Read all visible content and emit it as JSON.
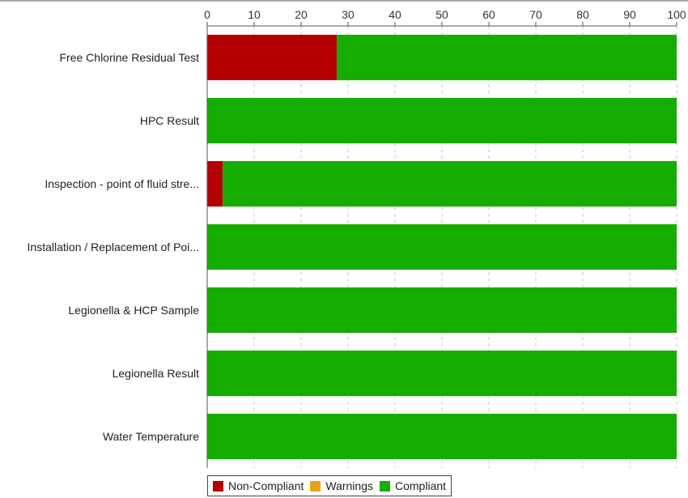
{
  "chart_data": {
    "type": "bar",
    "orientation": "horizontal",
    "stacked": true,
    "categories": [
      "Free Chlorine Residual Test",
      "HPC Result",
      "Inspection - point of fluid stre...",
      "Installation / Replacement of Poi...",
      "Legionella & HCP Sample",
      "Legionella Result",
      "Water Temperature"
    ],
    "series": [
      {
        "name": "Non-Compliant",
        "color": "#b30000",
        "values": [
          27.6,
          0,
          3.3,
          0,
          0,
          0,
          0
        ]
      },
      {
        "name": "Warnings",
        "color": "#e8a317",
        "values": [
          0,
          0,
          0,
          0,
          0,
          0,
          0
        ]
      },
      {
        "name": "Compliant",
        "color": "#14ad00",
        "values": [
          72.4,
          100,
          96.7,
          100,
          100,
          100,
          100
        ]
      }
    ],
    "x_ticks": [
      "0",
      "10",
      "20",
      "30",
      "40",
      "50",
      "60",
      "70",
      "80",
      "90",
      "100"
    ],
    "xlim": [
      0,
      100
    ],
    "x_axis_position": "top",
    "grid": true,
    "legend_position": "bottom"
  }
}
